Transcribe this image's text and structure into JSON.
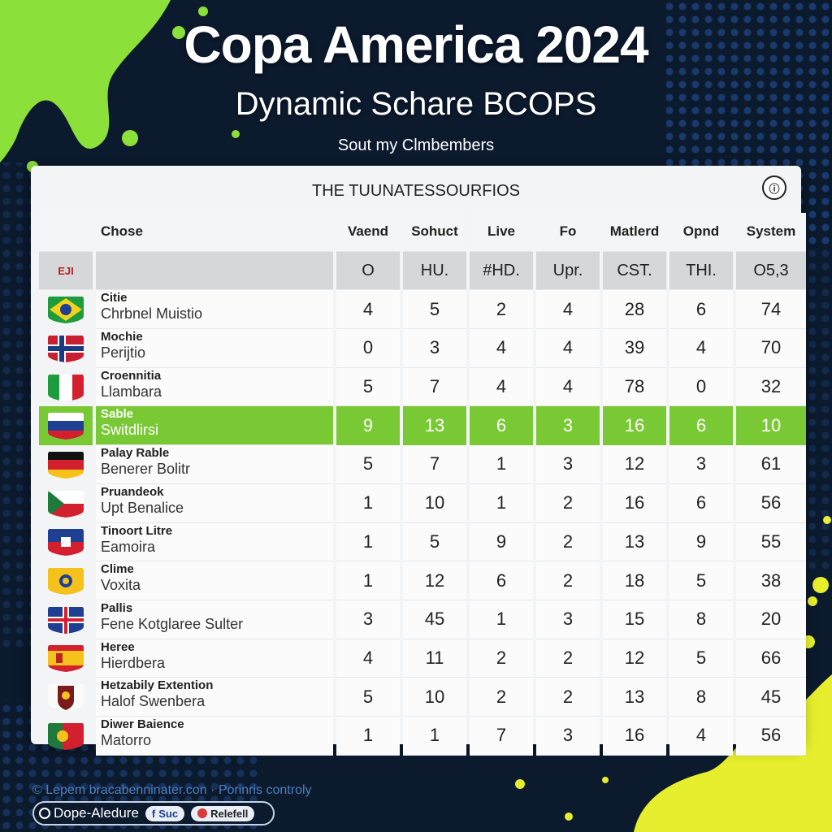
{
  "header": {
    "title": "Copa America 2024",
    "subtitle": "Dynamic Schare BCOPS",
    "tagline": "Sout my Clmbembers"
  },
  "panel": {
    "title": "THE TUUNATESSOURFIOS",
    "corner_icon": "info-icon"
  },
  "table": {
    "columns": [
      "",
      "Chose",
      "Vaend",
      "Sohuct",
      "Live",
      "Fo",
      "Matlerd",
      "Opnd",
      "System"
    ],
    "subheader": [
      "EJI",
      "",
      "O",
      "HU.",
      "#HD.",
      "Upr.",
      "CST.",
      "THI.",
      "O5,3"
    ],
    "rows": [
      {
        "flag": "brazil",
        "name1": "Citie",
        "name2": "Chrbnel Muistio",
        "values": [
          "4",
          "5",
          "2",
          "4",
          "28",
          "6",
          "74"
        ]
      },
      {
        "flag": "norway",
        "name1": "Mochie",
        "name2": "Perijtio",
        "values": [
          "0",
          "3",
          "4",
          "4",
          "39",
          "4",
          "70"
        ]
      },
      {
        "flag": "italy",
        "name1": "Croennitia",
        "name2": "Llambara",
        "values": [
          "5",
          "7",
          "4",
          "4",
          "78",
          "0",
          "32"
        ]
      },
      {
        "flag": "russia",
        "name1": "Sable",
        "name2": "Switdlirsi",
        "values": [
          "9",
          "13",
          "6",
          "3",
          "16",
          "6",
          "10"
        ],
        "highlight": true
      },
      {
        "flag": "germany",
        "name1": "Palay Rable",
        "name2": "Benerer Bolitr",
        "values": [
          "5",
          "7",
          "1",
          "3",
          "12",
          "3",
          "61"
        ]
      },
      {
        "flag": "czech",
        "name1": "Pruandeok",
        "name2": "Upt Benalice",
        "values": [
          "1",
          "10",
          "1",
          "2",
          "16",
          "6",
          "56"
        ]
      },
      {
        "flag": "haiti",
        "name1": "Tinoort Litre",
        "name2": "Eamoira",
        "values": [
          "1",
          "5",
          "9",
          "2",
          "13",
          "9",
          "55"
        ]
      },
      {
        "flag": "yellow",
        "name1": "Clime",
        "name2": "Voxita",
        "values": [
          "1",
          "12",
          "6",
          "2",
          "18",
          "5",
          "38"
        ]
      },
      {
        "flag": "uk",
        "name1": "Pallis",
        "name2": "Fene Kotglaree Sulter",
        "values": [
          "3",
          "45",
          "1",
          "3",
          "15",
          "8",
          "20"
        ]
      },
      {
        "flag": "spain",
        "name1": "Heree",
        "name2": "Hierdbera",
        "values": [
          "4",
          "11",
          "2",
          "2",
          "12",
          "5",
          "66"
        ]
      },
      {
        "flag": "crest",
        "name1": "Hetzabily Extention",
        "name2": "Halof Swenbera",
        "values": [
          "5",
          "10",
          "2",
          "2",
          "13",
          "8",
          "45"
        ]
      },
      {
        "flag": "portugal",
        "name1": "Diwer Baience",
        "name2": "Matorro",
        "values": [
          "1",
          "1",
          "7",
          "3",
          "16",
          "4",
          "56"
        ]
      }
    ]
  },
  "footer": {
    "link_text": "© Lepem bracabenninater.con  ·  Porinris controly",
    "brand": "Dope-Aledure",
    "pill1": "Suc",
    "pill2": "Relefell"
  },
  "colors": {
    "highlight": "#79c935",
    "background": "#0c1a2e",
    "accent_yellow": "#e6ee2d",
    "accent_green": "#8ce03a"
  }
}
